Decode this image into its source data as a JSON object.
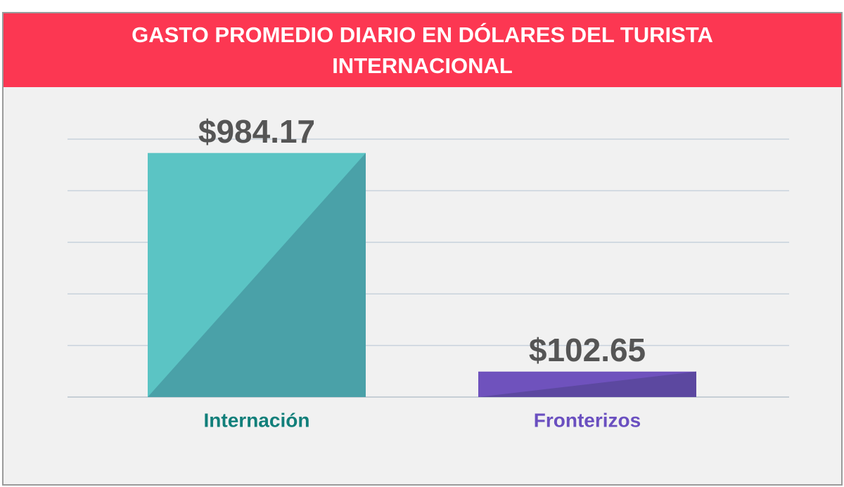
{
  "chart_data": {
    "type": "bar",
    "title": "GASTO PROMEDIO DIARIO EN DÓLARES DEL TURISTA INTERNACIONAL",
    "categories": [
      "Internación",
      "Fronterizos"
    ],
    "values": [
      984.17,
      102.65
    ],
    "value_labels": [
      "$984.17",
      "$102.65"
    ],
    "colors": [
      "#5bc4c4",
      "#6f52bd"
    ],
    "shade_colors": [
      "#4aa1a8",
      "#5c48a0"
    ],
    "label_colors": [
      "#117f7a",
      "#6a4fc0"
    ],
    "ylim": [
      0,
      1040
    ],
    "yticks": [
      0,
      208,
      416,
      624,
      832,
      1040
    ],
    "tick_labels": false,
    "grid": true
  }
}
